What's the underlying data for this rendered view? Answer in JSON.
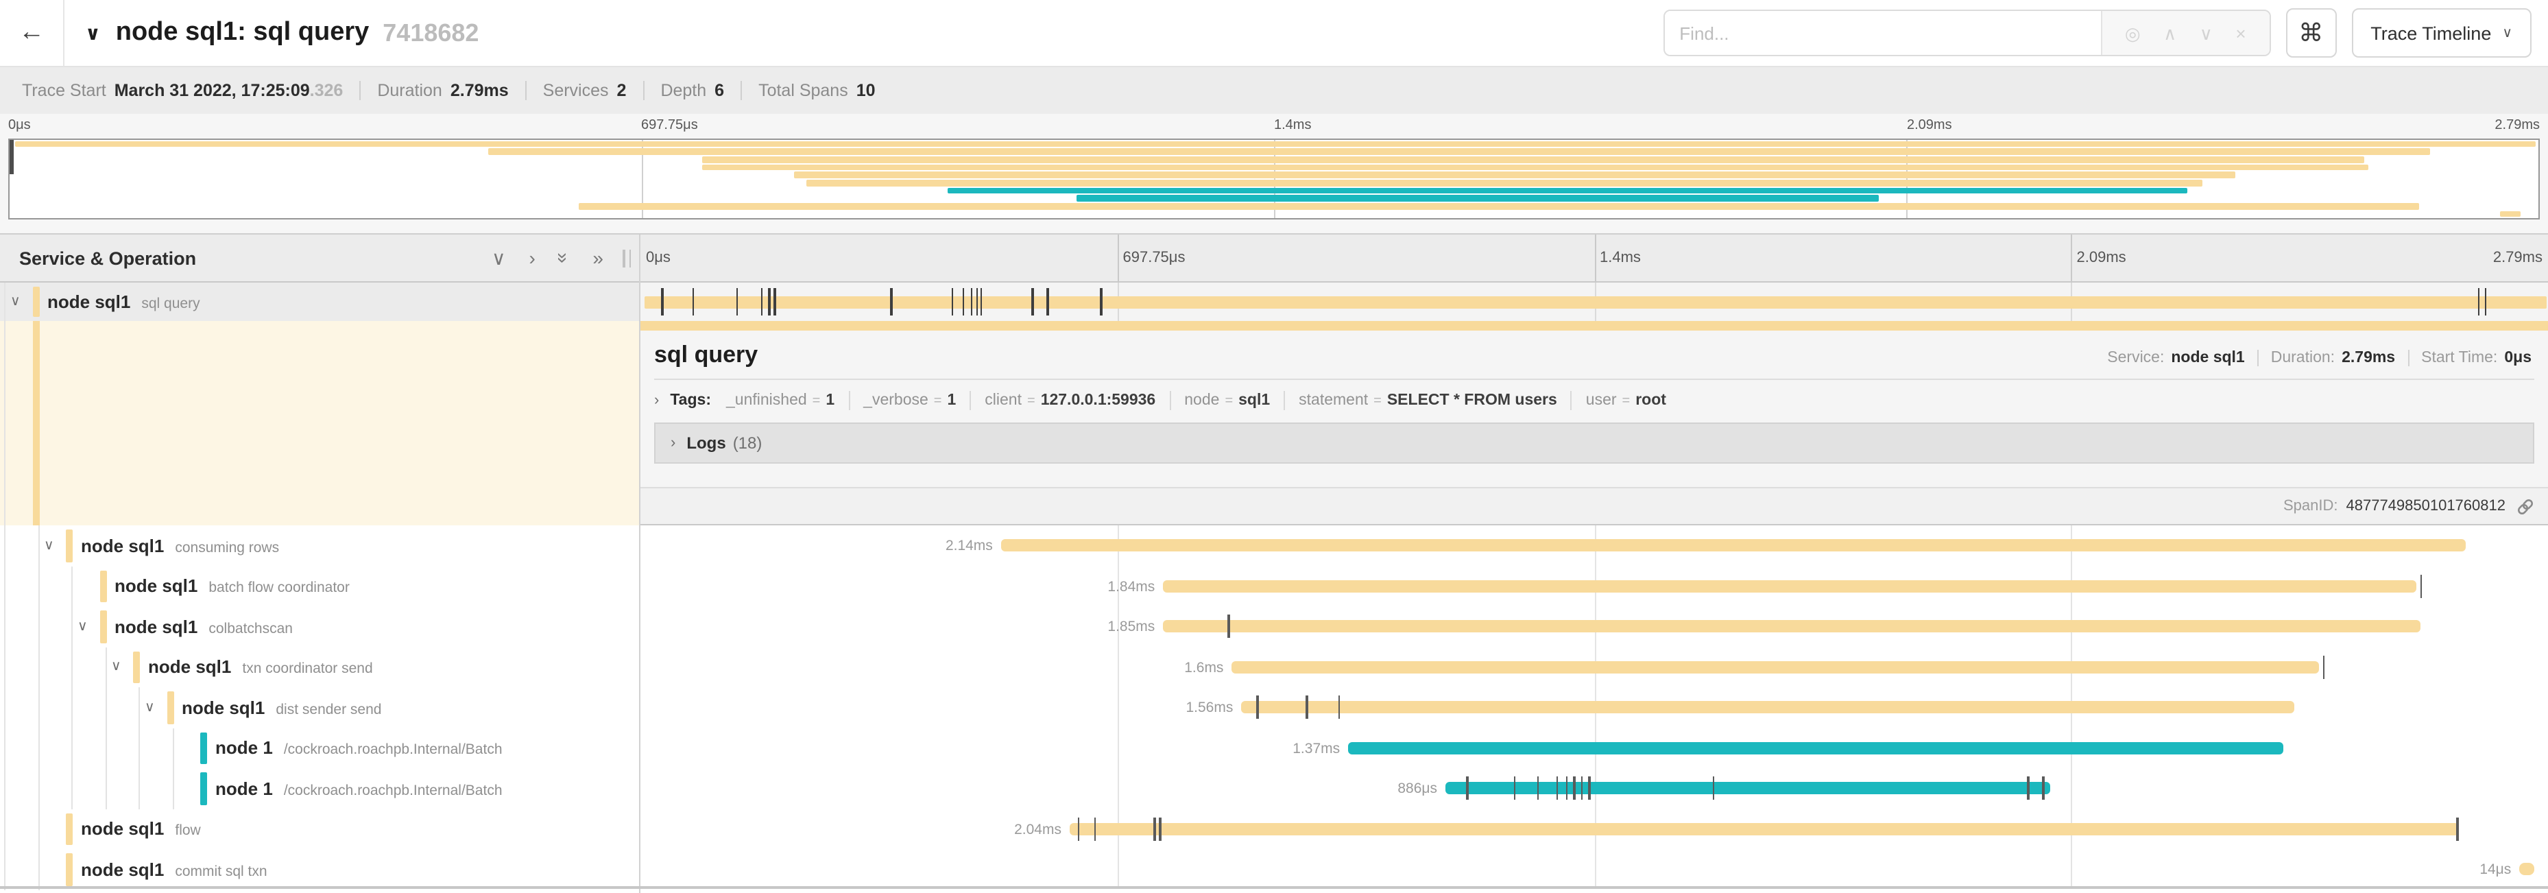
{
  "colors": {
    "tan": "#F8DA9B",
    "teal": "#1BB8BE",
    "cream": "#FDF6E4"
  },
  "header": {
    "back_glyph": "←",
    "title_chevron": "∨",
    "title": "node sql1: sql query",
    "trace_id": "7418682",
    "find_placeholder": "Find...",
    "find_tools": [
      {
        "name": "locate-icon",
        "glyph": "◎"
      },
      {
        "name": "prev-result-icon",
        "glyph": "∧"
      },
      {
        "name": "next-result-icon",
        "glyph": "∨"
      },
      {
        "name": "clear-search-icon",
        "glyph": "×"
      }
    ],
    "shortcuts_glyph": "⌘",
    "view_label": "Trace Timeline",
    "view_chevron": "∨"
  },
  "trace_info": {
    "items": [
      {
        "label": "Trace Start",
        "value": "March 31 2022, 17:25:09",
        "suffix": ".326"
      },
      {
        "label": "Duration",
        "value": "2.79ms"
      },
      {
        "label": "Services",
        "value": "2"
      },
      {
        "label": "Depth",
        "value": "6"
      },
      {
        "label": "Total Spans",
        "value": "10"
      }
    ]
  },
  "axis": {
    "ticks": [
      {
        "label": "0μs",
        "pos": 0
      },
      {
        "label": "697.75μs",
        "pos": 25
      },
      {
        "label": "1.4ms",
        "pos": 50
      },
      {
        "label": "2.09ms",
        "pos": 75
      },
      {
        "label": "2.79ms",
        "pos": 100,
        "align": "right"
      }
    ],
    "gridlines": [
      25,
      50,
      75
    ]
  },
  "left_header": {
    "title": "Service & Operation",
    "tools": [
      {
        "name": "chevron-down-icon",
        "glyph": "∨",
        "rot": 0
      },
      {
        "name": "chevron-right-icon",
        "glyph": "›",
        "rot": 0
      },
      {
        "name": "double-chevron-down-icon",
        "glyph": "»",
        "rot": 90
      },
      {
        "name": "double-chevron-right-icon",
        "glyph": "»",
        "rot": 0
      }
    ]
  },
  "spans": [
    {
      "service": "node sql1",
      "operation": "sql query",
      "depth": 0,
      "expandable": true,
      "color": "tan",
      "duration": "2.79ms",
      "bar": {
        "start": 0.2,
        "end": 99.9
      },
      "ticks": [
        1.1,
        2.7,
        5.0,
        6.3,
        6.7,
        7.0,
        13.1,
        16.3,
        16.9,
        17.3,
        17.6,
        17.8,
        20.5,
        21.3,
        24.1,
        96.3,
        96.7
      ],
      "selected": true
    },
    {
      "service": "node sql1",
      "operation": "consuming rows",
      "depth": 1,
      "expandable": true,
      "color": "tan",
      "duration": "2.14ms",
      "bar": {
        "start": 18.9,
        "end": 95.7
      },
      "ticks": []
    },
    {
      "service": "node sql1",
      "operation": "batch flow coordinator",
      "depth": 2,
      "expandable": false,
      "color": "tan",
      "duration": "1.84ms",
      "bar": {
        "start": 27.4,
        "end": 93.1
      },
      "ticks": [
        93.3
      ]
    },
    {
      "service": "node sql1",
      "operation": "colbatchscan",
      "depth": 2,
      "expandable": true,
      "color": "tan",
      "duration": "1.85ms",
      "bar": {
        "start": 27.4,
        "end": 93.3
      },
      "ticks": [
        30.8
      ]
    },
    {
      "service": "node sql1",
      "operation": "txn coordinator send",
      "depth": 3,
      "expandable": true,
      "color": "tan",
      "duration": "1.6ms",
      "bar": {
        "start": 31.0,
        "end": 88.0
      },
      "ticks": [
        88.2
      ]
    },
    {
      "service": "node sql1",
      "operation": "dist sender send",
      "depth": 4,
      "expandable": true,
      "color": "tan",
      "duration": "1.56ms",
      "bar": {
        "start": 31.5,
        "end": 86.7
      },
      "ticks": [
        32.3,
        34.9,
        36.6
      ]
    },
    {
      "service": "node 1",
      "operation": "/cockroach.roachpb.Internal/Batch",
      "depth": 5,
      "expandable": false,
      "color": "teal",
      "duration": "1.37ms",
      "bar": {
        "start": 37.1,
        "end": 86.1
      },
      "ticks": []
    },
    {
      "service": "node 1",
      "operation": "/cockroach.roachpb.Internal/Batch",
      "depth": 5,
      "expandable": false,
      "color": "teal",
      "duration": "886μs",
      "bar": {
        "start": 42.2,
        "end": 73.9
      },
      "ticks": [
        43.3,
        45.8,
        47.0,
        48.0,
        48.5,
        48.9,
        49.3,
        49.7,
        56.2,
        72.7,
        73.5
      ]
    },
    {
      "service": "node sql1",
      "operation": "flow",
      "depth": 1,
      "expandable": false,
      "color": "tan",
      "duration": "2.04ms",
      "bar": {
        "start": 22.5,
        "end": 95.3
      },
      "ticks": [
        22.9,
        23.8,
        26.9,
        27.2,
        95.2
      ]
    },
    {
      "service": "node sql1",
      "operation": "commit sql txn",
      "depth": 1,
      "expandable": false,
      "color": "tan",
      "duration": "14μs",
      "bar": {
        "start": 98.5,
        "end": 99.3
      },
      "ticks": []
    }
  ],
  "detail": {
    "title": "sql query",
    "meta": [
      {
        "label": "Service:",
        "value": "node sql1"
      },
      {
        "label": "Duration:",
        "value": "2.79ms"
      },
      {
        "label": "Start Time:",
        "value": "0μs"
      }
    ],
    "tags_chevron": "›",
    "tags_label": "Tags:",
    "tags": [
      {
        "key": "_unfinished",
        "value": "1"
      },
      {
        "key": "_verbose",
        "value": "1"
      },
      {
        "key": "client",
        "value": "127.0.0.1:59936"
      },
      {
        "key": "node",
        "value": "sql1"
      },
      {
        "key": "statement",
        "value": "SELECT * FROM users"
      },
      {
        "key": "user",
        "value": "root"
      }
    ],
    "logs_chevron": "›",
    "logs_label": "Logs",
    "logs_count": "(18)",
    "span_id_label": "SpanID:",
    "span_id": "4877749850101760812"
  }
}
